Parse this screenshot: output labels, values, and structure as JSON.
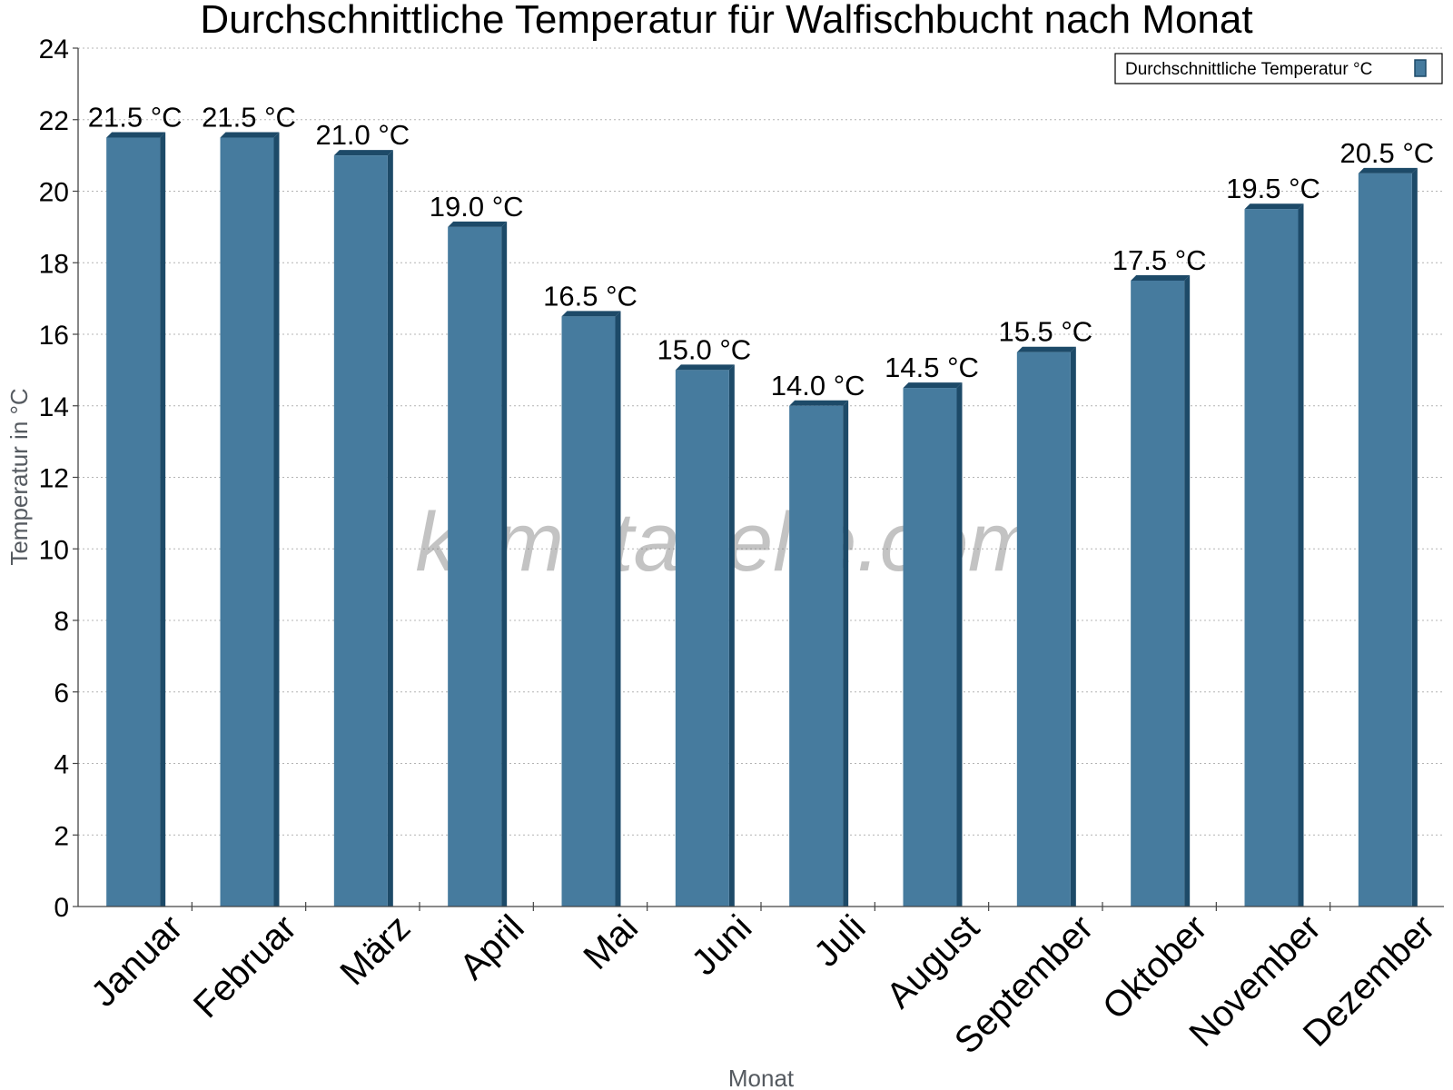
{
  "chart_data": {
    "type": "bar",
    "title": "Durchschnittliche Temperatur für Walfischbucht nach Monat",
    "xlabel": "Monat",
    "ylabel": "Temperatur in °C",
    "categories": [
      "Januar",
      "Februar",
      "März",
      "April",
      "Mai",
      "Juni",
      "Juli",
      "August",
      "September",
      "Oktober",
      "November",
      "Dezember"
    ],
    "series": [
      {
        "name": "Durchschnittliche Temperatur °C",
        "values": [
          21.5,
          21.5,
          21.0,
          19.0,
          16.5,
          15.0,
          14.0,
          14.5,
          15.5,
          17.5,
          19.5,
          20.5
        ],
        "data_labels": [
          "21.5 °C",
          "21.5 °C",
          "21.0 °C",
          "19.0 °C",
          "16.5 °C",
          "15.0 °C",
          "14.0 °C",
          "14.5 °C",
          "15.5 °C",
          "17.5 °C",
          "19.5 °C",
          "20.5 °C"
        ],
        "color": "#467b9e"
      }
    ],
    "ylim": [
      0,
      24
    ],
    "yticks": [
      "0",
      "2",
      "4",
      "6",
      "8",
      "10",
      "12",
      "14",
      "16",
      "18",
      "20",
      "22",
      "24"
    ],
    "grid": true,
    "legend_position": "top-right",
    "watermark": "klimatabelle.com"
  }
}
